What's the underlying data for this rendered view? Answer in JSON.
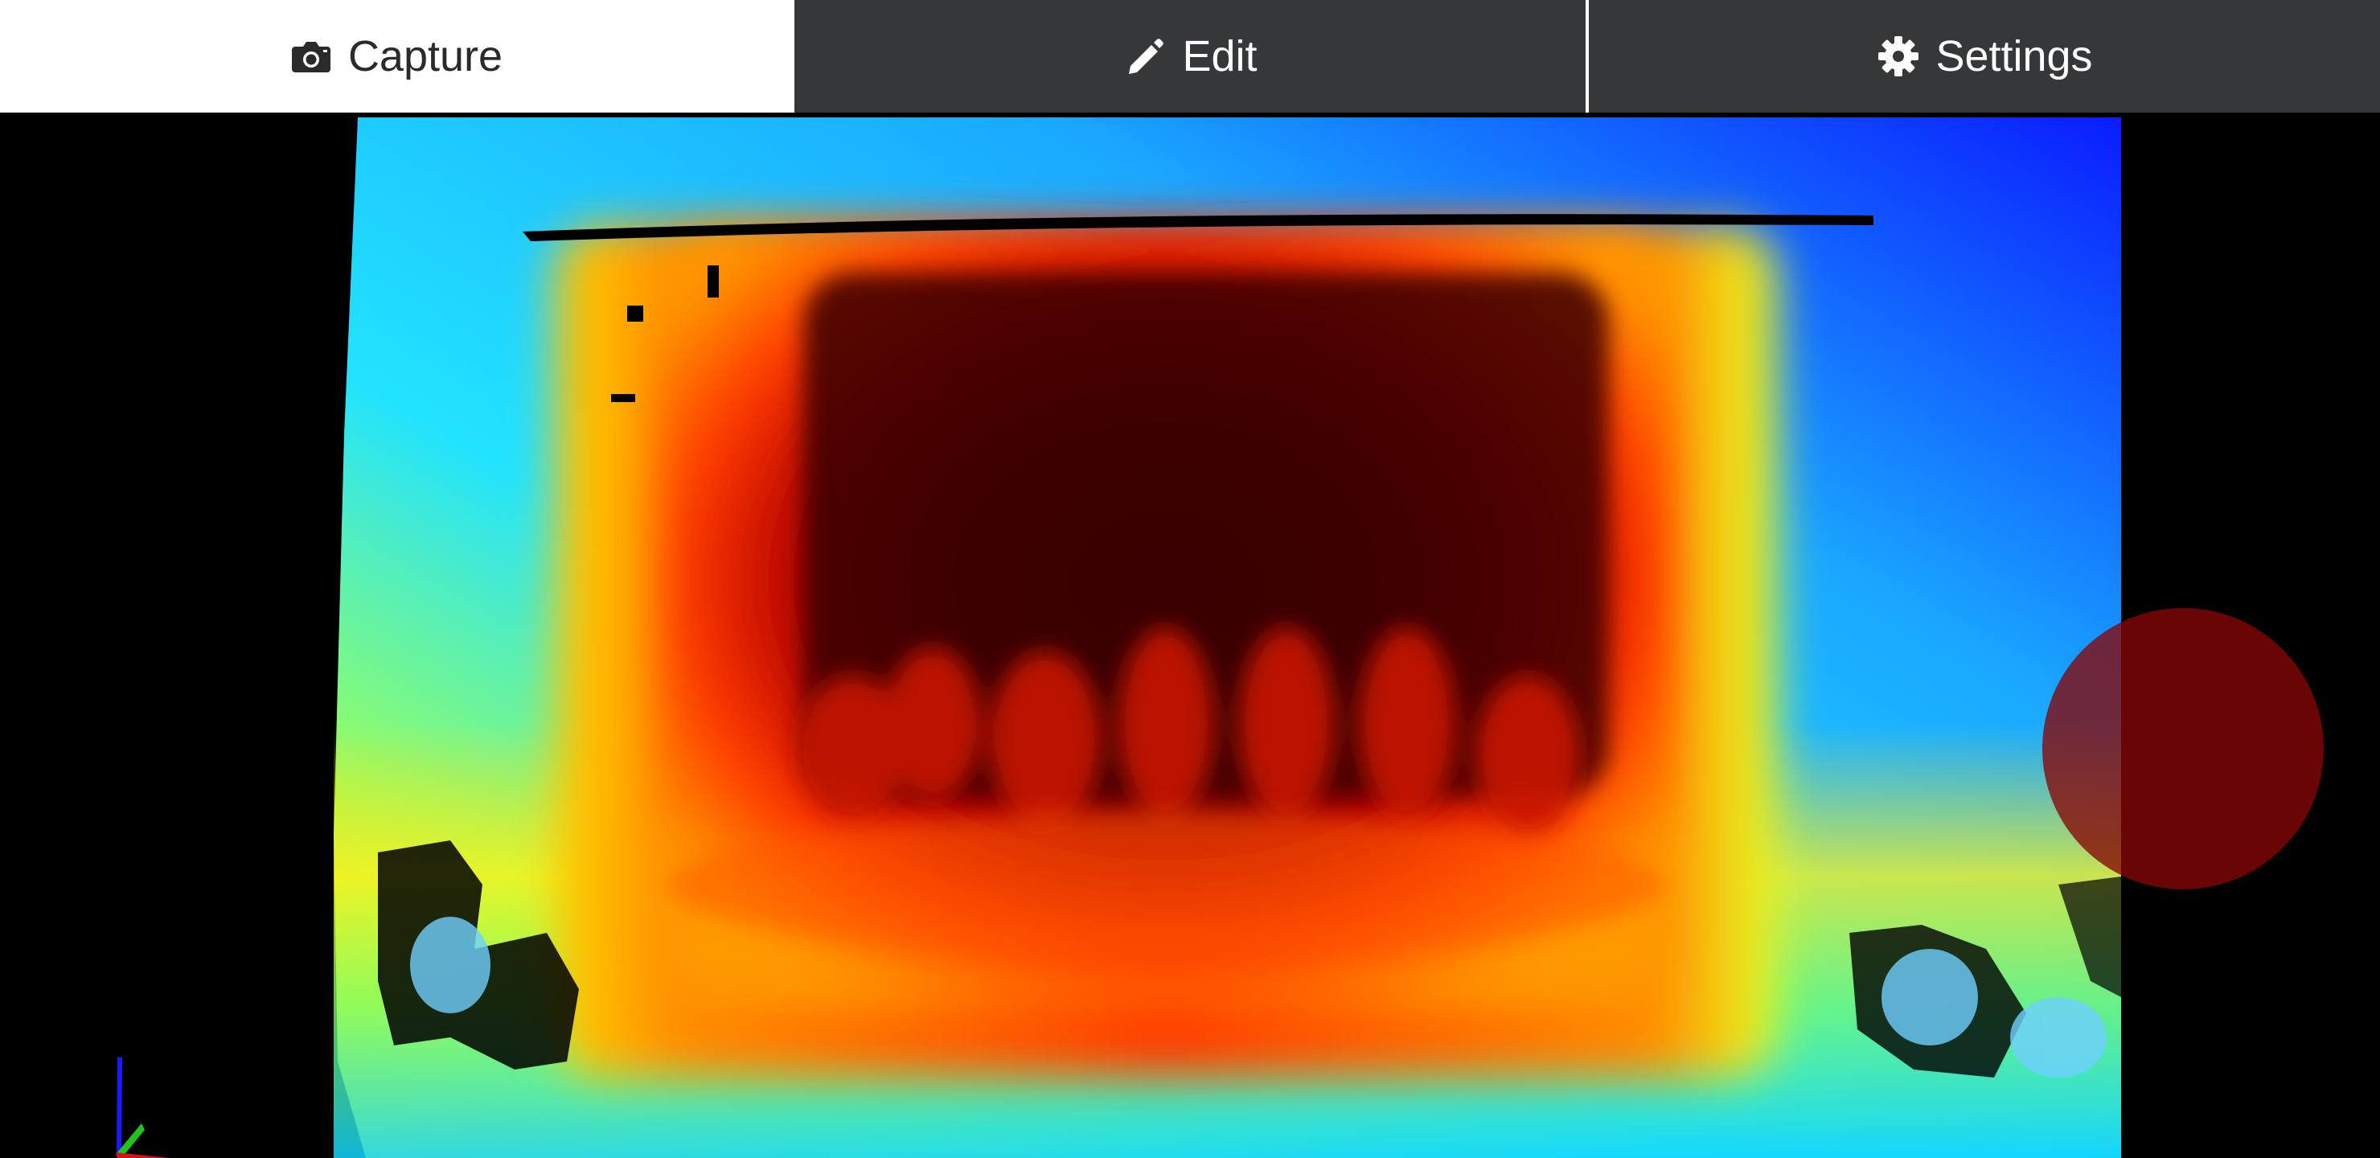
{
  "tabs": [
    {
      "id": "capture",
      "label": "Capture",
      "icon": "camera-icon",
      "active": true
    },
    {
      "id": "edit",
      "label": "Edit",
      "icon": "pencil-icon",
      "active": false
    },
    {
      "id": "settings",
      "label": "Settings",
      "icon": "gear-icon",
      "active": false
    }
  ],
  "viewport": {
    "content": "depth-map-pointcloud",
    "colormap": "jet"
  },
  "axis_gizmo": {
    "axes": [
      {
        "axis": "x",
        "color": "#d21414"
      },
      {
        "axis": "y",
        "color": "#22c31e"
      },
      {
        "axis": "z",
        "color": "#1a1aff"
      }
    ]
  },
  "capture_button": {
    "icon": "record-icon",
    "color": "#870606"
  },
  "colors": {
    "tab_background": "#363738",
    "tab_active_background": "#ffffff",
    "tab_text": "#ffffff",
    "tab_active_text": "#2a2a2a"
  }
}
